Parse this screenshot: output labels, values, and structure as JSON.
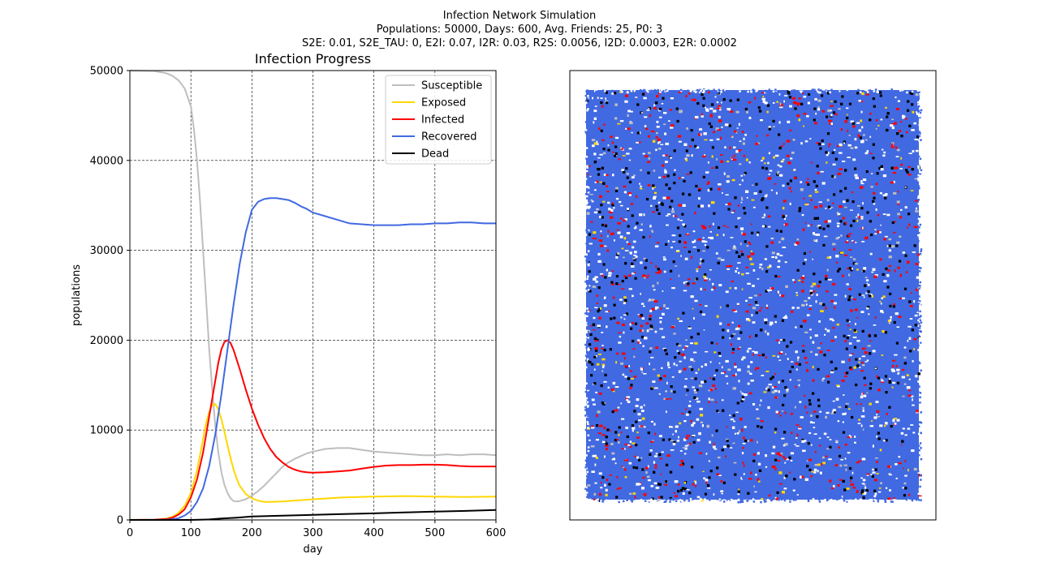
{
  "suptitle": {
    "line1": "Infection Network Simulation",
    "line2": "Populations: 50000, Days: 600, Avg. Friends: 25, P0: 3",
    "line3": "S2E: 0.01, S2E_TAU: 0, E2I: 0.07, I2R: 0.03, R2S: 0.0056, I2D: 0.0003, E2R: 0.0002"
  },
  "chart_data": [
    {
      "type": "line",
      "title": "Infection Progress",
      "xlabel": "day",
      "ylabel": "populations",
      "xlim": [
        0,
        600
      ],
      "ylim": [
        0,
        50000
      ],
      "xticks": [
        0,
        100,
        200,
        300,
        400,
        500,
        600
      ],
      "yticks": [
        0,
        10000,
        20000,
        30000,
        40000,
        50000
      ],
      "grid": true,
      "legend": "top-right",
      "series": [
        {
          "name": "Susceptible",
          "color": "#bebebe",
          "x": [
            0,
            40,
            60,
            70,
            80,
            90,
            100,
            105,
            110,
            115,
            120,
            125,
            130,
            135,
            140,
            145,
            150,
            155,
            160,
            165,
            170,
            175,
            180,
            190,
            200,
            210,
            220,
            230,
            240,
            250,
            260,
            270,
            280,
            290,
            300,
            320,
            340,
            360,
            380,
            400,
            420,
            440,
            460,
            480,
            500,
            520,
            540,
            560,
            580,
            600
          ],
          "y": [
            50000,
            49950,
            49700,
            49400,
            48900,
            48000,
            46000,
            43500,
            40000,
            35500,
            30000,
            24500,
            19000,
            14500,
            10500,
            7500,
            5300,
            3900,
            3000,
            2400,
            2100,
            2050,
            2100,
            2300,
            2700,
            3200,
            3800,
            4500,
            5200,
            5900,
            6400,
            6800,
            7100,
            7400,
            7600,
            7900,
            8000,
            8000,
            7800,
            7600,
            7500,
            7400,
            7300,
            7200,
            7200,
            7300,
            7200,
            7300,
            7300,
            7200
          ]
        },
        {
          "name": "Exposed",
          "color": "#ffd700",
          "x": [
            0,
            40,
            60,
            70,
            80,
            90,
            100,
            110,
            115,
            120,
            125,
            130,
            135,
            140,
            145,
            150,
            155,
            160,
            165,
            170,
            175,
            180,
            190,
            200,
            210,
            220,
            230,
            250,
            280,
            300,
            350,
            400,
            450,
            500,
            550,
            600
          ],
          "y": [
            0,
            30,
            150,
            350,
            800,
            1600,
            3000,
            5500,
            7200,
            9000,
            10800,
            12000,
            12800,
            12900,
            12300,
            11200,
            9800,
            8300,
            6900,
            5600,
            4600,
            3800,
            2900,
            2400,
            2150,
            2000,
            2000,
            2050,
            2200,
            2300,
            2500,
            2600,
            2650,
            2600,
            2550,
            2600
          ]
        },
        {
          "name": "Infected",
          "color": "#ff0000",
          "x": [
            0,
            40,
            60,
            70,
            80,
            90,
            100,
            110,
            120,
            130,
            140,
            145,
            150,
            155,
            160,
            165,
            170,
            180,
            190,
            200,
            210,
            220,
            230,
            240,
            250,
            260,
            270,
            280,
            290,
            300,
            320,
            340,
            360,
            380,
            400,
            420,
            440,
            460,
            480,
            500,
            520,
            540,
            560,
            580,
            600
          ],
          "y": [
            0,
            20,
            100,
            250,
            600,
            1200,
            2500,
            4500,
            7500,
            11500,
            15500,
            17500,
            19000,
            19800,
            20000,
            19700,
            18900,
            16800,
            14500,
            12400,
            10600,
            9100,
            7900,
            7000,
            6400,
            5900,
            5600,
            5400,
            5300,
            5250,
            5300,
            5400,
            5500,
            5700,
            5900,
            6050,
            6100,
            6100,
            6150,
            6150,
            6100,
            6000,
            5950,
            5950,
            5950
          ]
        },
        {
          "name": "Recovered",
          "color": "#4169e1",
          "x": [
            0,
            40,
            60,
            70,
            80,
            90,
            100,
            110,
            120,
            130,
            140,
            150,
            160,
            170,
            180,
            190,
            200,
            210,
            220,
            230,
            240,
            250,
            260,
            270,
            280,
            290,
            300,
            320,
            340,
            360,
            380,
            400,
            420,
            440,
            460,
            480,
            500,
            520,
            540,
            560,
            580,
            600
          ],
          "y": [
            0,
            5,
            30,
            80,
            200,
            500,
            1000,
            2000,
            3500,
            6000,
            9500,
            14000,
            19000,
            24000,
            28500,
            32000,
            34500,
            35400,
            35700,
            35800,
            35800,
            35700,
            35600,
            35300,
            34900,
            34600,
            34200,
            33800,
            33400,
            33000,
            32900,
            32800,
            32800,
            32800,
            32900,
            32900,
            33000,
            33000,
            33100,
            33100,
            33000,
            33000
          ]
        },
        {
          "name": "Dead",
          "color": "#000000",
          "x": [
            0,
            100,
            130,
            150,
            175,
            200,
            250,
            300,
            350,
            400,
            450,
            500,
            550,
            600
          ],
          "y": [
            0,
            0,
            50,
            150,
            250,
            380,
            480,
            560,
            650,
            730,
            830,
            920,
            1000,
            1100
          ]
        }
      ]
    },
    {
      "type": "scatter",
      "description_colors": {
        "susceptible": "#bebebe",
        "exposed": "#ffd700",
        "infected": "#ff0000",
        "recovered": "#4169e1",
        "dead": "#000000"
      },
      "xticks": [],
      "yticks": [],
      "grid": false
    }
  ]
}
